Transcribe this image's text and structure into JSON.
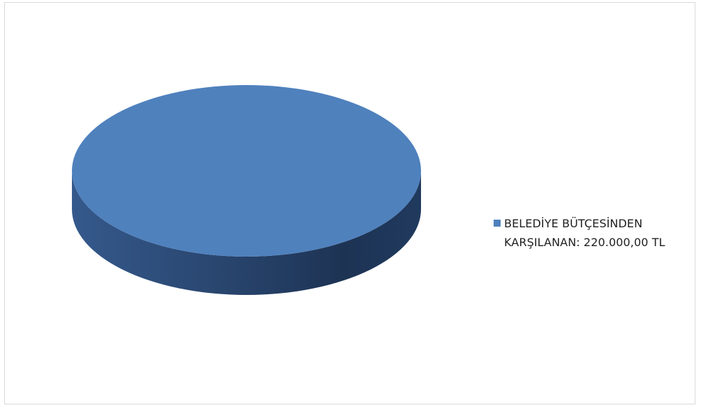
{
  "chart_data": {
    "type": "pie",
    "title": "",
    "slices": [
      {
        "label": "BELEDİYE BÜTÇESİNDEN KARŞILANAN: 220.000,00 TL",
        "value": 220000,
        "color": "#4f81bd"
      }
    ],
    "legend_position": "right"
  }
}
